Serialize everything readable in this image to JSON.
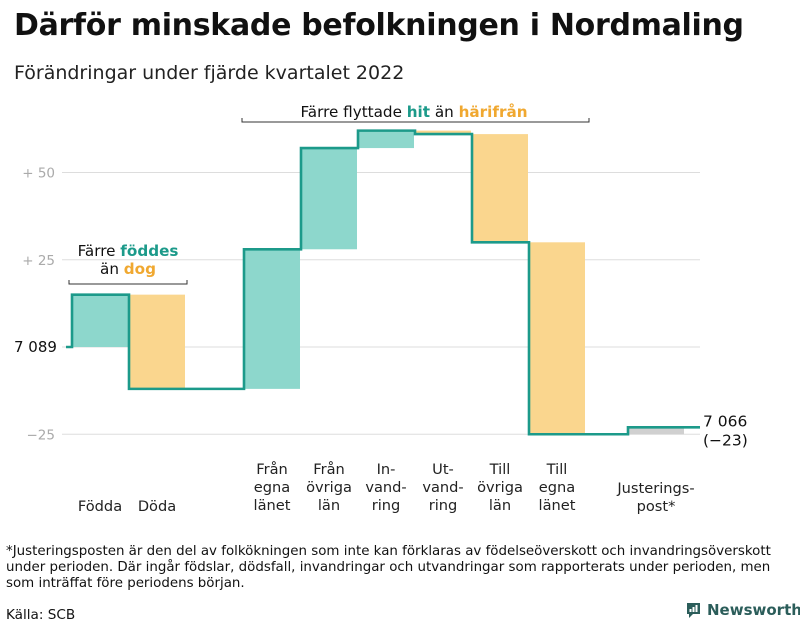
{
  "title": "Därför minskade befolkningen i Nordmaling",
  "subtitle": "Förändringar under fjärde kvartalet 2022",
  "colors": {
    "increase": "#8dd7cc",
    "decrease": "#fad68e",
    "adjustment": "#d0d0d0",
    "line": "#1c9a8a",
    "teal_text": "#1c9a8a",
    "orange_text": "#f0a830",
    "grid": "#dddddd",
    "axis_text": "#aaaaaa"
  },
  "chart_data": {
    "type": "waterfall",
    "start_value": 7089,
    "start_label": "7 089",
    "end_value": 7066,
    "end_label": "7 066",
    "end_change_label": "(−23)",
    "y_ticks": [
      {
        "value": 50,
        "label": "+ 50"
      },
      {
        "value": 25,
        "label": "+ 25"
      },
      {
        "value": -25,
        "label": "−25"
      }
    ],
    "ylim": [
      -32,
      64
    ],
    "steps": [
      {
        "label_lines": [
          "Födda"
        ],
        "change": 15,
        "kind": "increase"
      },
      {
        "label_lines": [
          "Döda"
        ],
        "change": -27,
        "kind": "decrease"
      },
      {
        "label_lines": [
          "Från",
          "egna",
          "länet"
        ],
        "change": 40,
        "kind": "increase"
      },
      {
        "label_lines": [
          "Från",
          "övriga",
          "län"
        ],
        "change": 29,
        "kind": "increase"
      },
      {
        "label_lines": [
          "In-",
          "vand-",
          "ring"
        ],
        "change": 5,
        "kind": "increase"
      },
      {
        "label_lines": [
          "Ut-",
          "vand-",
          "ring"
        ],
        "change": -1,
        "kind": "decrease"
      },
      {
        "label_lines": [
          "Till",
          "övriga",
          "län"
        ],
        "change": -31,
        "kind": "decrease"
      },
      {
        "label_lines": [
          "Till",
          "egna",
          "länet"
        ],
        "change": -55,
        "kind": "decrease"
      },
      {
        "label_lines": [
          "Justerings-",
          "post*"
        ],
        "change": 2,
        "kind": "adjustment"
      }
    ],
    "annotations": [
      {
        "parts": [
          {
            "text": "Färre "
          },
          {
            "text": "föddes",
            "color": "teal"
          },
          {
            "text": "\n"
          },
          {
            "text": "än "
          },
          {
            "text": "dog",
            "color": "orange"
          }
        ]
      },
      {
        "parts": [
          {
            "text": "Färre flyttade "
          },
          {
            "text": "hit",
            "color": "teal"
          },
          {
            "text": " än "
          },
          {
            "text": "härifrån",
            "color": "orange"
          }
        ]
      }
    ]
  },
  "footnote": "*Justeringsposten är den del av folkökningen som inte kan förklaras av födelseöverskott och invandringsöverskott under perioden. Där ingår födslar, dödsfall, invandringar och utvandringar som rapporterats under perioden, men som inträffat före periodens början.",
  "source": "Källa: SCB",
  "brand": "Newsworthy"
}
